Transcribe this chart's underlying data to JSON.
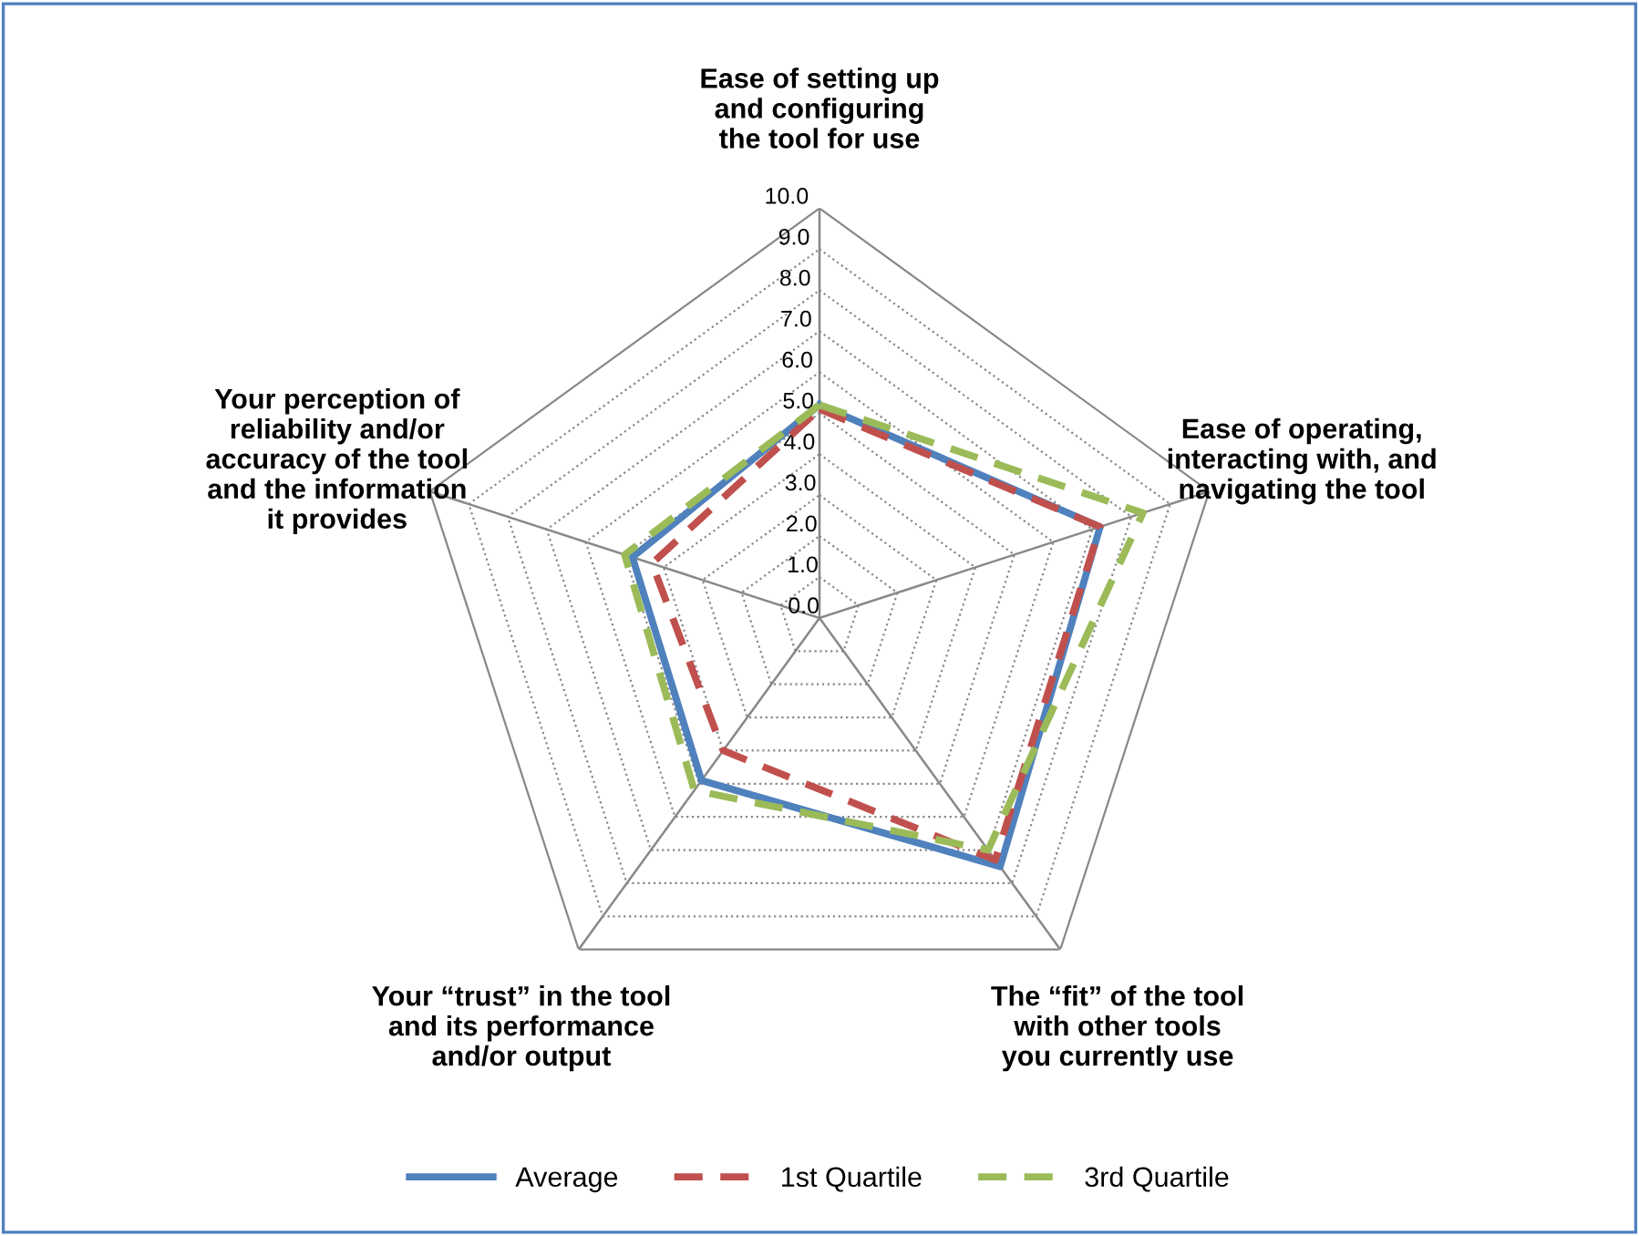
{
  "chart_data": {
    "type": "radar",
    "categories": [
      "Ease of setting up\nand configuring\nthe tool for use",
      "Ease of operating,\ninteracting with, and\nnavigating the tool",
      "The “fit” of the tool\nwith other tools\nyou currently use",
      "Your “trust” in the tool\nand its performance\nand/or output",
      "Your perception of\nreliability and/or\naccuracy of the tool\nand the information\nit provides"
    ],
    "series": [
      {
        "name": "Average",
        "color": "#4f81bd",
        "values": [
          5.2,
          7.2,
          7.5,
          4.9,
          4.8
        ],
        "line_style": "solid"
      },
      {
        "name": "1st Quartile",
        "color": "#c0504d",
        "values": [
          5.1,
          7.2,
          7.3,
          4.0,
          4.3
        ],
        "line_style": "dashed"
      },
      {
        "name": "3rd Quartile",
        "color": "#9bbb59",
        "values": [
          5.2,
          8.3,
          7.0,
          5.2,
          5.0
        ],
        "line_style": "dashed"
      }
    ],
    "ylim": [
      0,
      10
    ],
    "yticks": [
      {
        "value": 0,
        "label": "0.0"
      },
      {
        "value": 1,
        "label": "1.0"
      },
      {
        "value": 2,
        "label": "2.0"
      },
      {
        "value": 3,
        "label": "3.0"
      },
      {
        "value": 4,
        "label": "4.0"
      },
      {
        "value": 5,
        "label": "5.0"
      },
      {
        "value": 6,
        "label": "6.0"
      },
      {
        "value": 7,
        "label": "7.0"
      },
      {
        "value": 8,
        "label": "8.0"
      },
      {
        "value": 9,
        "label": "9.0"
      },
      {
        "value": 10,
        "label": "10.0"
      }
    ],
    "grid": true,
    "legend": "bottom",
    "marker": "none"
  }
}
